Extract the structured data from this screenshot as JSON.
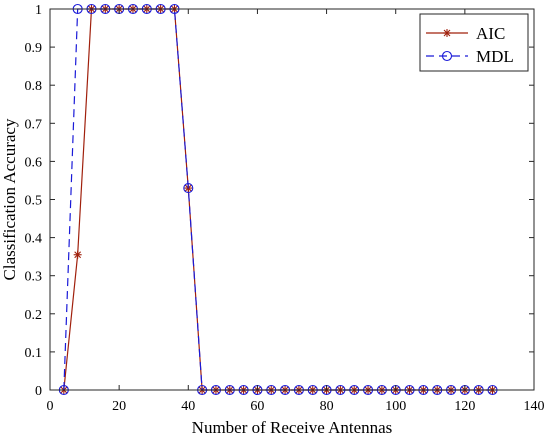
{
  "chart_data": {
    "type": "line",
    "title": "",
    "xlabel": "Number of Receive Antennas",
    "ylabel": "Classification Accuracy",
    "xlim": [
      0,
      140
    ],
    "ylim": [
      0,
      1
    ],
    "xticks": [
      0,
      20,
      40,
      60,
      80,
      100,
      120,
      140
    ],
    "yticks": [
      0,
      0.1,
      0.2,
      0.3,
      0.4,
      0.5,
      0.6,
      0.7,
      0.8,
      0.9,
      1
    ],
    "grid": false,
    "legend_position": "top-right",
    "x": [
      4,
      8,
      12,
      16,
      20,
      24,
      28,
      32,
      36,
      40,
      44,
      48,
      52,
      56,
      60,
      64,
      68,
      72,
      76,
      80,
      84,
      88,
      92,
      96,
      100,
      104,
      108,
      112,
      116,
      120,
      124,
      128
    ],
    "series": [
      {
        "name": "AIC",
        "color": "#a0200c",
        "line_style": "solid",
        "marker": "asterisk",
        "values": [
          0,
          0.355,
          1,
          1,
          1,
          1,
          1,
          1,
          1,
          0.53,
          0,
          0,
          0,
          0,
          0,
          0,
          0,
          0,
          0,
          0,
          0,
          0,
          0,
          0,
          0,
          0,
          0,
          0,
          0,
          0,
          0,
          0
        ]
      },
      {
        "name": "MDL",
        "color": "#1a1ad8",
        "line_style": "dashed",
        "marker": "circle",
        "values": [
          0,
          1,
          1,
          1,
          1,
          1,
          1,
          1,
          1,
          0.53,
          0,
          0,
          0,
          0,
          0,
          0,
          0,
          0,
          0,
          0,
          0,
          0,
          0,
          0,
          0,
          0,
          0,
          0,
          0,
          0,
          0,
          0
        ]
      }
    ]
  }
}
